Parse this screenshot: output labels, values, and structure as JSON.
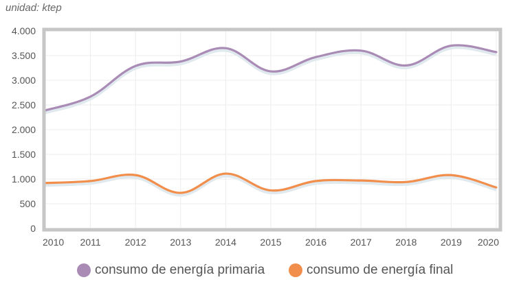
{
  "unit_note": "unidad: ktep",
  "colors": {
    "primaria": "#a98bb5",
    "final": "#f28e4b",
    "grid": "#ececec",
    "frame": "#c6c6c6",
    "axis_text": "#555555"
  },
  "chart_data": {
    "type": "line",
    "x": [
      "2010",
      "2011",
      "2012",
      "2013",
      "2014",
      "2015",
      "2016",
      "2017",
      "2018",
      "2019",
      "2020"
    ],
    "ylim": [
      0,
      4000
    ],
    "yticks": [
      0,
      500,
      1000,
      1500,
      2000,
      2500,
      3000,
      3500,
      4000
    ],
    "ytick_labels": [
      "0",
      "500",
      "1.000",
      "1.500",
      "2.000",
      "2.500",
      "3.000",
      "3.500",
      "4.000"
    ],
    "series": [
      {
        "name": "consumo de energía primaria",
        "color": "#a98bb5",
        "values": [
          2390,
          2670,
          3290,
          3380,
          3650,
          3180,
          3470,
          3600,
          3300,
          3700,
          3570
        ]
      },
      {
        "name": "consumo de energía final",
        "color": "#f28e4b",
        "values": [
          920,
          960,
          1080,
          720,
          1110,
          770,
          960,
          970,
          940,
          1080,
          830
        ]
      }
    ],
    "grid": true,
    "legend_position": "bottom"
  }
}
